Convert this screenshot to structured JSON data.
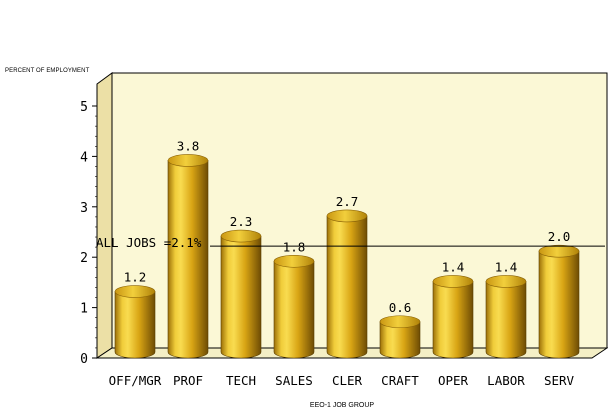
{
  "chart_data": {
    "type": "bar",
    "style": "3d-cylinder",
    "title": "",
    "ylabel": "PERCENT OF EMPLOYMENT",
    "xlabel": "EEO-1 JOB GROUP",
    "categories": [
      "OFF/MGR",
      "PROF",
      "TECH",
      "SALES",
      "CLER",
      "CRAFT",
      "OPER",
      "LABOR",
      "SERV"
    ],
    "values": [
      1.2,
      3.8,
      2.3,
      1.8,
      2.7,
      0.6,
      1.4,
      1.4,
      2.0
    ],
    "value_labels": [
      "1.2",
      "3.8",
      "2.3",
      "1.8",
      "2.7",
      "0.6",
      "1.4",
      "1.4",
      "2.0"
    ],
    "ylim": [
      0,
      5
    ],
    "yticks": [
      0,
      1,
      2,
      3,
      4,
      5
    ],
    "reference_line": {
      "value": 2.1,
      "label": "ALL JOBS =2.1%"
    },
    "grid": false,
    "legend": "none",
    "colors": {
      "bar_light": "#f7d84a",
      "bar_mid": "#d9a514",
      "bar_dark": "#7a5606",
      "bar_top": "#e8bc1e",
      "back_wall": "#fbf8d6",
      "side_wall": "#ece0a6",
      "floor": "#f4efc6"
    }
  }
}
